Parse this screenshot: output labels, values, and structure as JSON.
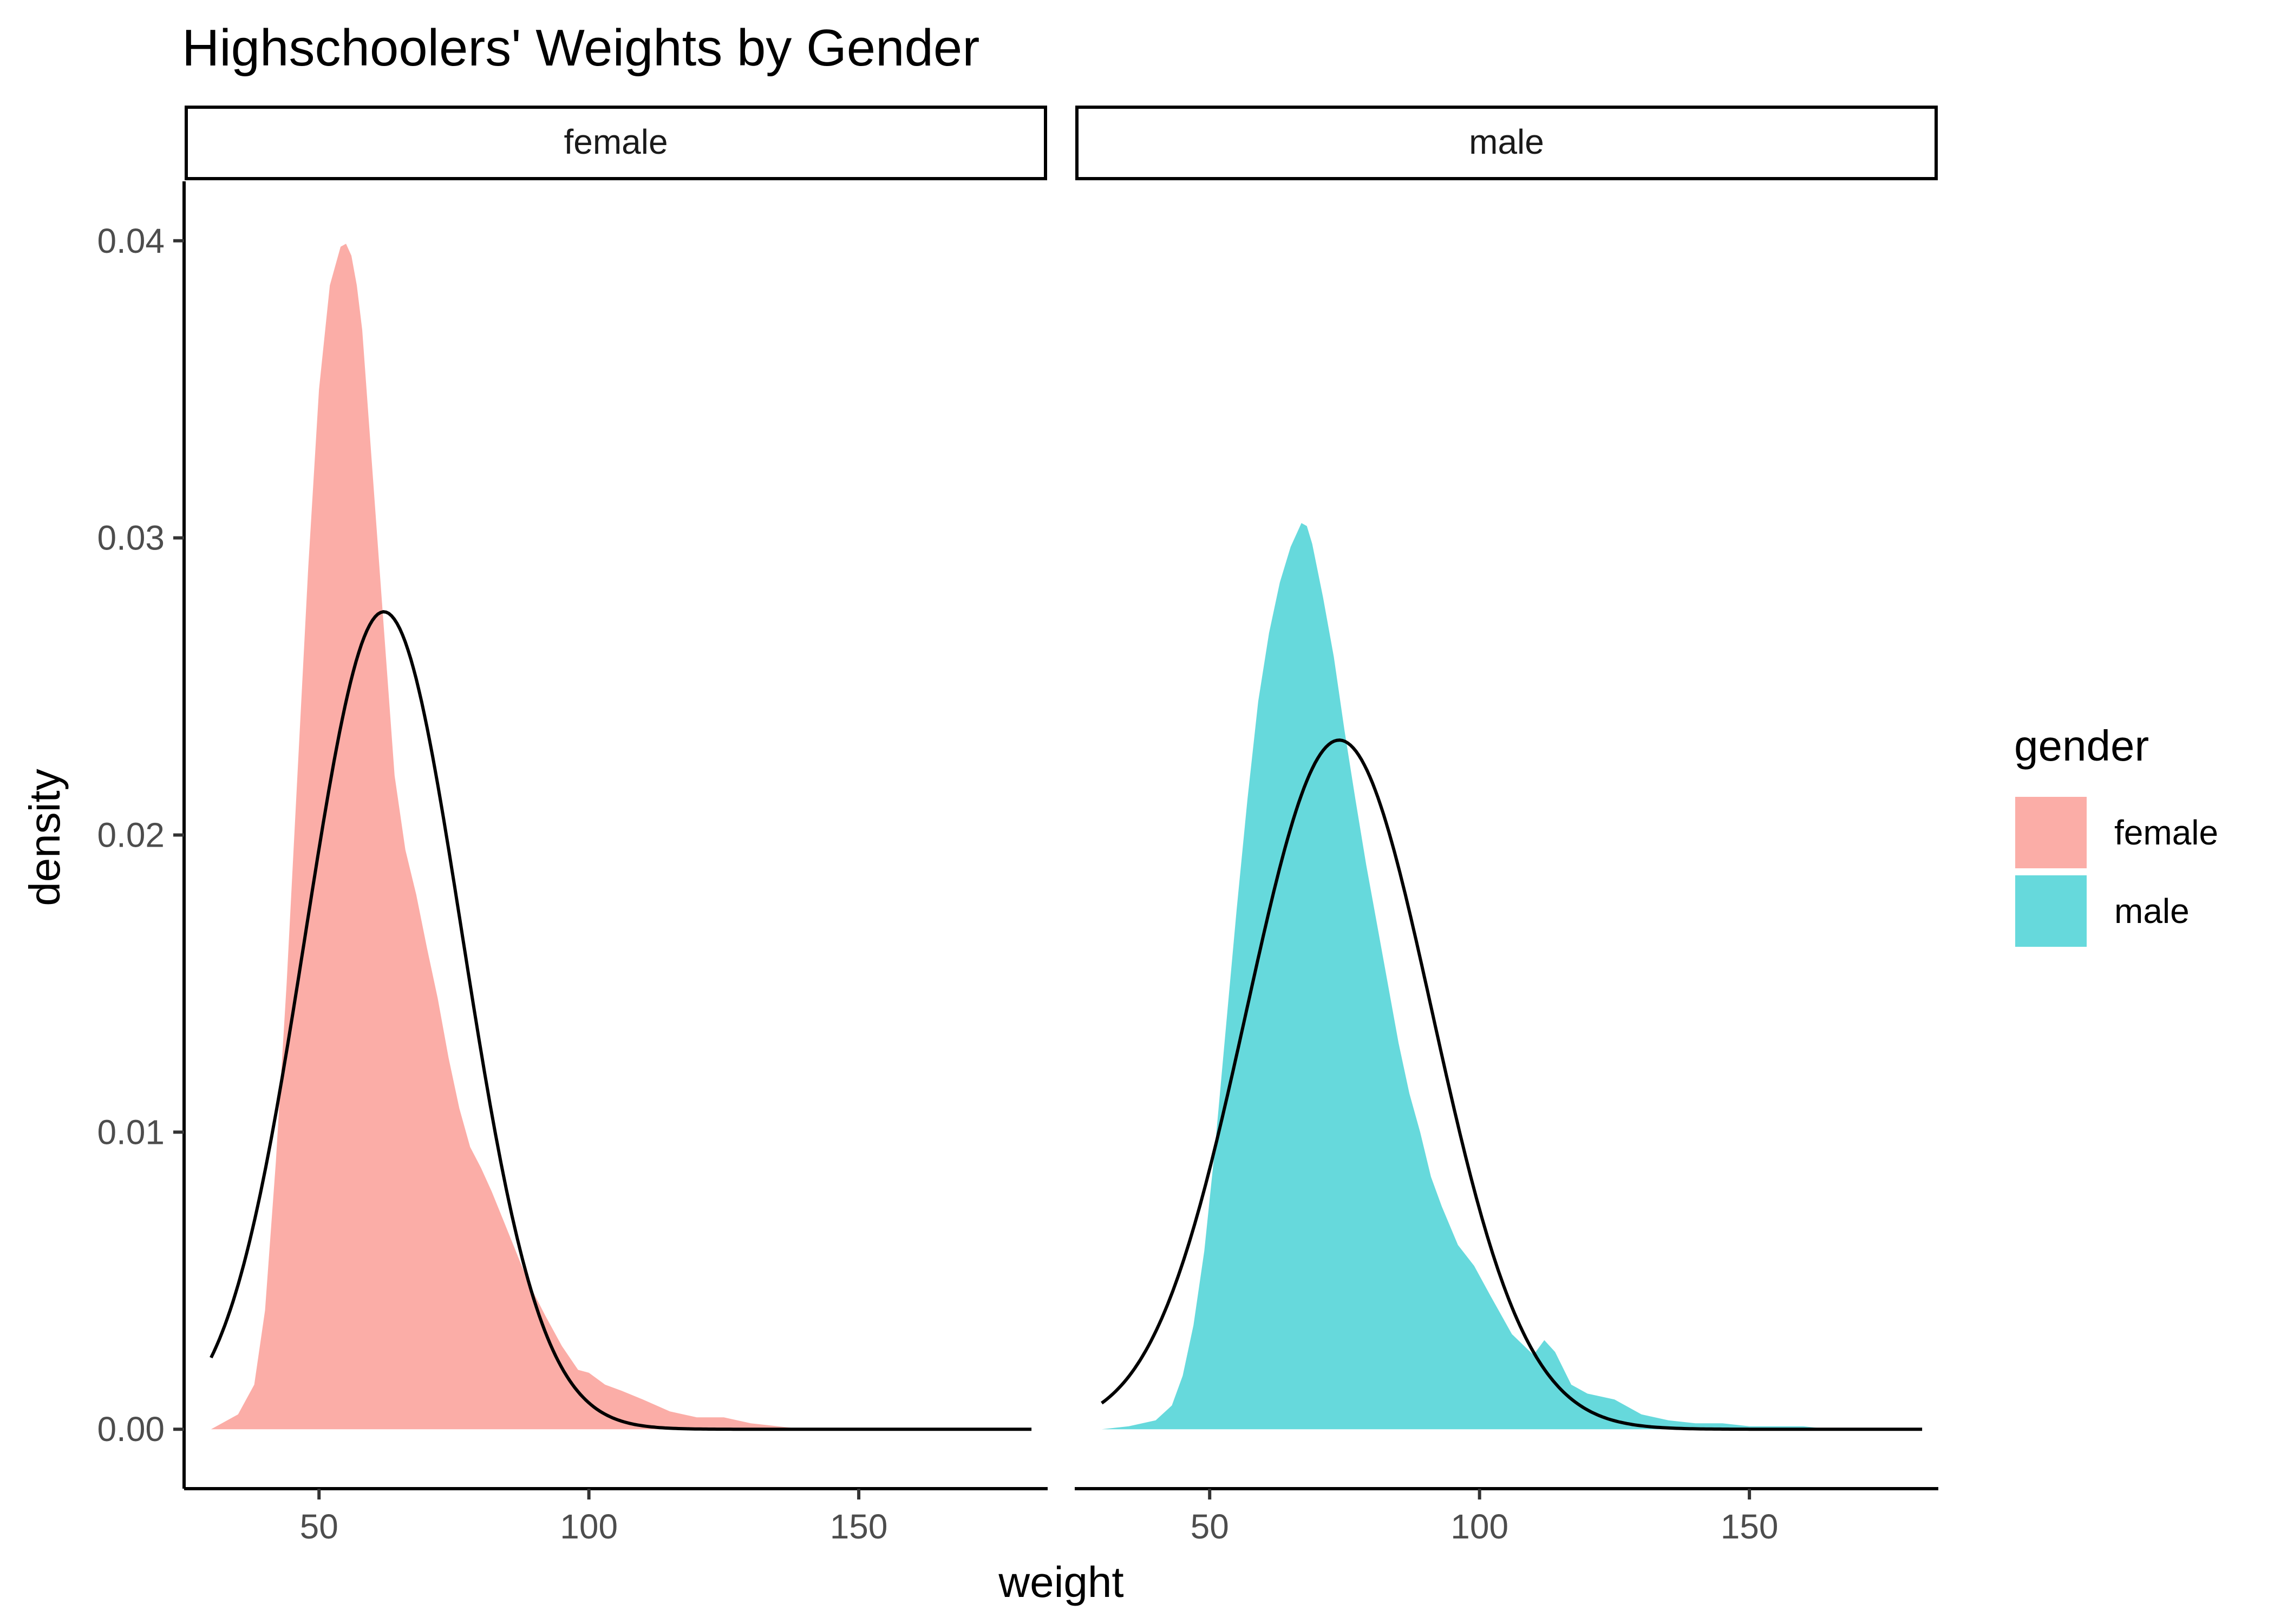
{
  "chart_data": {
    "type": "area",
    "title": "Highschoolers' Weights by Gender",
    "xlabel": "weight",
    "ylabel": "density",
    "xlim": [
      25,
      185
    ],
    "ylim": [
      -0.002,
      0.042
    ],
    "x_ticks": [
      50,
      100,
      150
    ],
    "x_tick_labels": [
      "50",
      "100",
      "150"
    ],
    "y_ticks": [
      0.0,
      0.01,
      0.02,
      0.03,
      0.04
    ],
    "y_tick_labels": [
      "0.00",
      "0.01",
      "0.02",
      "0.03",
      "0.04"
    ],
    "grid": false,
    "legend": {
      "title": "gender",
      "position": "right",
      "items": [
        {
          "label": "female",
          "color": "#F8766D"
        },
        {
          "label": "male",
          "color": "#00BFC4"
        }
      ]
    },
    "fill_alpha": 0.6,
    "normal_curve_color": "#000000",
    "panels": [
      {
        "strip_label": "female",
        "fill_color": "#F8766D",
        "density": {
          "x": [
            30,
            35,
            38,
            40,
            42,
            44,
            46,
            48,
            50,
            52,
            54,
            55,
            56,
            57,
            58,
            60,
            62,
            64,
            66,
            68,
            70,
            72,
            74,
            76,
            78,
            80,
            82,
            84,
            86,
            88,
            90,
            92,
            95,
            98,
            100,
            103,
            106,
            110,
            115,
            120,
            125,
            130,
            135,
            140
          ],
          "y": [
            0.0,
            0.0005,
            0.0015,
            0.004,
            0.009,
            0.015,
            0.022,
            0.029,
            0.035,
            0.0385,
            0.0398,
            0.0399,
            0.0395,
            0.0385,
            0.037,
            0.032,
            0.027,
            0.022,
            0.0195,
            0.018,
            0.0162,
            0.0145,
            0.0125,
            0.0108,
            0.0095,
            0.0088,
            0.008,
            0.0071,
            0.0062,
            0.0053,
            0.0045,
            0.0038,
            0.0028,
            0.002,
            0.0019,
            0.0015,
            0.0013,
            0.001,
            0.0006,
            0.0004,
            0.0004,
            0.0002,
            0.0001,
            0.0
          ]
        },
        "normal_fit": {
          "mean": 62.0,
          "sd": 14.5,
          "x_range": [
            30,
            182
          ]
        }
      },
      {
        "strip_label": "male",
        "fill_color": "#00BFC4",
        "density": {
          "x": [
            30,
            35,
            40,
            43,
            45,
            47,
            49,
            51,
            53,
            55,
            57,
            59,
            61,
            63,
            65,
            67,
            68,
            69,
            71,
            73,
            75,
            77,
            79,
            81,
            83,
            85,
            87,
            89,
            91,
            93,
            96,
            99,
            102,
            106,
            110,
            112,
            114,
            117,
            120,
            125,
            130,
            135,
            140,
            145,
            150,
            155,
            160,
            165
          ],
          "y": [
            0.0,
            0.0001,
            0.0003,
            0.0008,
            0.0018,
            0.0035,
            0.006,
            0.0095,
            0.0135,
            0.0175,
            0.0212,
            0.0245,
            0.0268,
            0.0285,
            0.0297,
            0.0305,
            0.0304,
            0.0298,
            0.028,
            0.026,
            0.0235,
            0.0212,
            0.019,
            0.017,
            0.015,
            0.013,
            0.0113,
            0.01,
            0.0085,
            0.0075,
            0.0062,
            0.0055,
            0.0045,
            0.0032,
            0.0025,
            0.003,
            0.0026,
            0.0015,
            0.0012,
            0.001,
            0.0005,
            0.0003,
            0.0002,
            0.0002,
            0.0001,
            0.0001,
            0.0001,
            0.0
          ]
        },
        "normal_fit": {
          "mean": 74.0,
          "sd": 17.2,
          "x_range": [
            30,
            182
          ]
        }
      }
    ]
  }
}
